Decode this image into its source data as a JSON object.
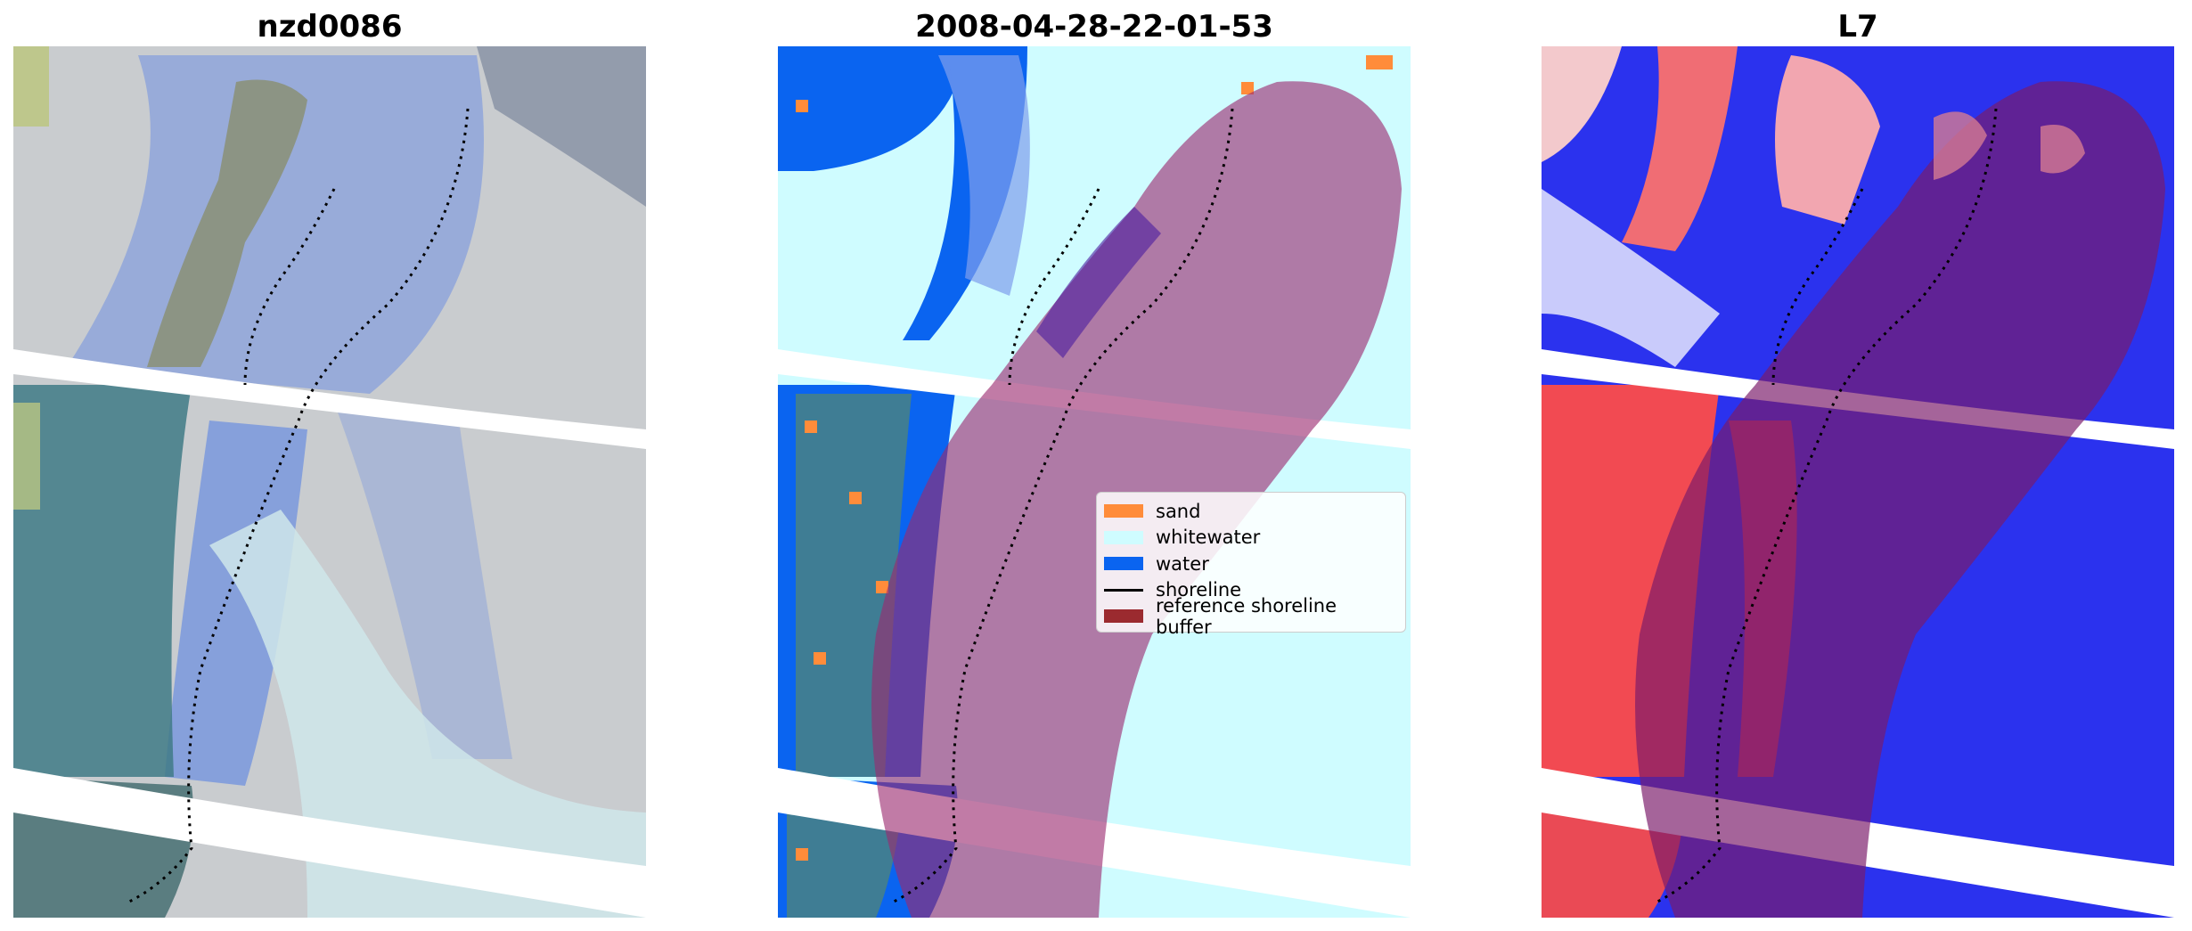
{
  "panels": [
    {
      "title": "nzd0086"
    },
    {
      "title": "2008-04-28-22-01-53"
    },
    {
      "title": "L7"
    }
  ],
  "legend": {
    "items": [
      {
        "label": "sand",
        "color": "#ff8c3a"
      },
      {
        "label": "whitewater",
        "color": "#cffcff"
      },
      {
        "label": "water",
        "color": "#0a64f0"
      },
      {
        "label": "shoreline",
        "color": "#000000"
      },
      {
        "label": "reference shoreline buffer",
        "color": "#9b2a2f"
      }
    ]
  },
  "colors": {
    "sand": "#ff8c3a",
    "whitewater": "#cffcff",
    "water": "#0a64f0",
    "shoreline": "#000000",
    "reference_buffer": "#9b2a2f"
  }
}
